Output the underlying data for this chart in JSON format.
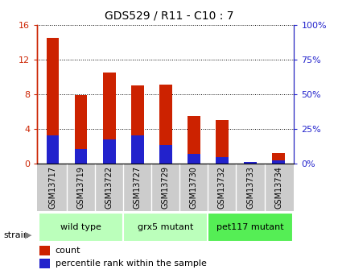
{
  "title": "GDS529 / R11 - C10 : 7",
  "samples": [
    "GSM13717",
    "GSM13719",
    "GSM13722",
    "GSM13727",
    "GSM13729",
    "GSM13730",
    "GSM13732",
    "GSM13733",
    "GSM13734"
  ],
  "counts": [
    14.5,
    7.9,
    10.5,
    9.0,
    9.1,
    5.5,
    5.0,
    0.05,
    1.2
  ],
  "percentiles_left_scale": [
    3.3,
    1.7,
    2.8,
    3.3,
    2.1,
    1.1,
    0.7,
    0.2,
    0.4
  ],
  "groups": [
    {
      "label": "wild type",
      "start": 0,
      "end": 3
    },
    {
      "label": "grx5 mutant",
      "start": 3,
      "end": 6
    },
    {
      "label": "pet117 mutant",
      "start": 6,
      "end": 9
    }
  ],
  "group_colors": [
    "#bbffbb",
    "#bbffbb",
    "#55ee55"
  ],
  "ylim_left": [
    0,
    16
  ],
  "ylim_right": [
    0,
    100
  ],
  "yticks_left": [
    0,
    4,
    8,
    12,
    16
  ],
  "yticks_right": [
    0,
    25,
    50,
    75,
    100
  ],
  "ytick_labels_left": [
    "0",
    "4",
    "8",
    "12",
    "16"
  ],
  "ytick_labels_right": [
    "0%",
    "25%",
    "50%",
    "75%",
    "100%"
  ],
  "bar_color_red": "#cc2200",
  "bar_color_blue": "#2222cc",
  "bar_width": 0.45,
  "blue_bar_width": 0.45,
  "legend_count_label": "count",
  "legend_pct_label": "percentile rank within the sample",
  "strain_label": "strain",
  "left_axis_color": "#cc2200",
  "right_axis_color": "#2222cc",
  "tick_area_color": "#cccccc",
  "title_fontsize": 10,
  "tick_label_fontsize": 7
}
